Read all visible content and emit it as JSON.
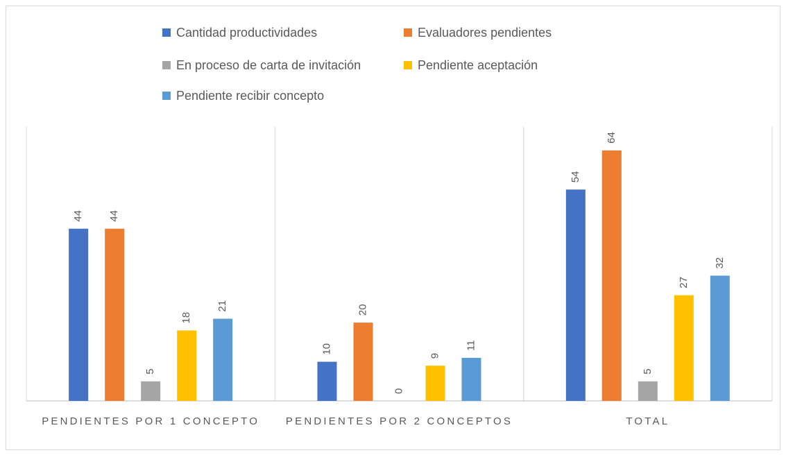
{
  "chart_data": {
    "type": "bar",
    "categories": [
      "PENDIENTES POR 1 CONCEPTO",
      "PENDIENTES POR 2 CONCEPTOS",
      "TOTAL"
    ],
    "series": [
      {
        "name": "Cantidad productividades",
        "color": "#4472c4",
        "values": [
          44,
          10,
          54
        ]
      },
      {
        "name": "Evaluadores pendientes",
        "color": "#ed7d31",
        "values": [
          44,
          20,
          64
        ]
      },
      {
        "name": "En proceso de carta de invitación",
        "color": "#a5a5a5",
        "values": [
          5,
          0,
          5
        ]
      },
      {
        "name": "Pendiente aceptación",
        "color": "#ffc000",
        "values": [
          18,
          9,
          27
        ]
      },
      {
        "name": "Pendiente recibir concepto",
        "color": "#5b9bd5",
        "values": [
          21,
          11,
          32
        ]
      }
    ],
    "ylim": [
      0,
      70
    ],
    "legend": "top"
  }
}
